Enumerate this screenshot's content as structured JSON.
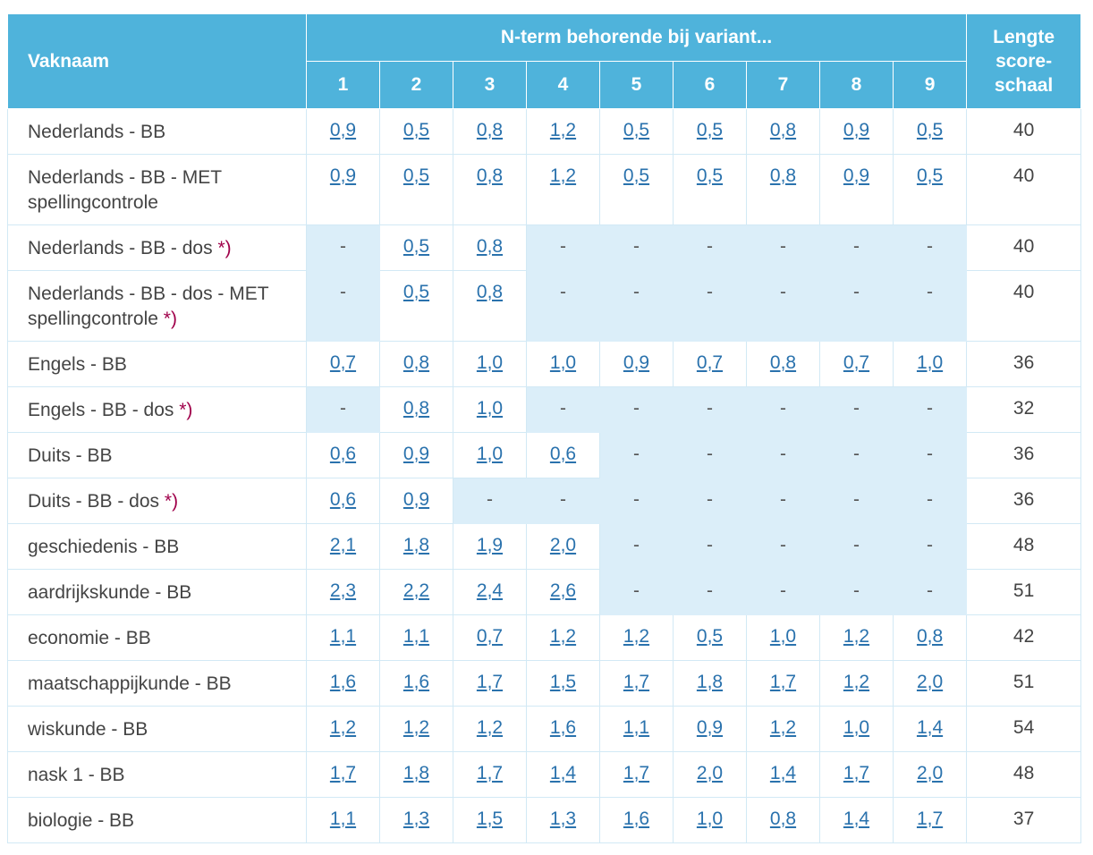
{
  "header": {
    "col_name": "Vaknaam",
    "col_group": "N-term behorende bij variant...",
    "col_length": "Lengte score-schaal",
    "variants": [
      "1",
      "2",
      "3",
      "4",
      "5",
      "6",
      "7",
      "8",
      "9"
    ]
  },
  "rows": [
    {
      "name": "Nederlands - BB",
      "star": "",
      "values": [
        "0,9",
        "0,5",
        "0,8",
        "1,2",
        "0,5",
        "0,5",
        "0,8",
        "0,9",
        "0,5"
      ],
      "length": "40"
    },
    {
      "name": "Nederlands - BB - MET spellingcontrole",
      "star": "",
      "values": [
        "0,9",
        "0,5",
        "0,8",
        "1,2",
        "0,5",
        "0,5",
        "0,8",
        "0,9",
        "0,5"
      ],
      "length": "40"
    },
    {
      "name": "Nederlands - BB - dos ",
      "star": "*)",
      "values": [
        "-",
        "0,5",
        "0,8",
        "-",
        "-",
        "-",
        "-",
        "-",
        "-"
      ],
      "length": "40"
    },
    {
      "name": "Nederlands - BB - dos - MET spellingcontrole ",
      "star": "*)",
      "values": [
        "-",
        "0,5",
        "0,8",
        "-",
        "-",
        "-",
        "-",
        "-",
        "-"
      ],
      "length": "40"
    },
    {
      "name": "Engels - BB",
      "star": "",
      "values": [
        "0,7",
        "0,8",
        "1,0",
        "1,0",
        "0,9",
        "0,7",
        "0,8",
        "0,7",
        "1,0"
      ],
      "length": "36"
    },
    {
      "name": "Engels - BB - dos ",
      "star": "*)",
      "values": [
        "-",
        "0,8",
        "1,0",
        "-",
        "-",
        "-",
        "-",
        "-",
        "-"
      ],
      "length": "32"
    },
    {
      "name": "Duits - BB",
      "star": "",
      "values": [
        "0,6",
        "0,9",
        "1,0",
        "0,6",
        "-",
        "-",
        "-",
        "-",
        "-"
      ],
      "length": "36"
    },
    {
      "name": "Duits - BB - dos ",
      "star": "*)",
      "values": [
        "0,6",
        "0,9",
        "-",
        "-",
        "-",
        "-",
        "-",
        "-",
        "-"
      ],
      "length": "36"
    },
    {
      "name": "geschiedenis - BB",
      "star": "",
      "values": [
        "2,1",
        "1,8",
        "1,9",
        "2,0",
        "-",
        "-",
        "-",
        "-",
        "-"
      ],
      "length": "48"
    },
    {
      "name": "aardrijkskunde - BB",
      "star": "",
      "values": [
        "2,3",
        "2,2",
        "2,4",
        "2,6",
        "-",
        "-",
        "-",
        "-",
        "-"
      ],
      "length": "51"
    },
    {
      "name": "economie - BB",
      "star": "",
      "values": [
        "1,1",
        "1,1",
        "0,7",
        "1,2",
        "1,2",
        "0,5",
        "1,0",
        "1,2",
        "0,8"
      ],
      "length": "42"
    },
    {
      "name": "maatschappijkunde - BB",
      "star": "",
      "values": [
        "1,6",
        "1,6",
        "1,7",
        "1,5",
        "1,7",
        "1,8",
        "1,7",
        "1,2",
        "2,0"
      ],
      "length": "51"
    },
    {
      "name": "wiskunde - BB",
      "star": "",
      "values": [
        "1,2",
        "1,2",
        "1,2",
        "1,6",
        "1,1",
        "0,9",
        "1,2",
        "1,0",
        "1,4"
      ],
      "length": "54"
    },
    {
      "name": "nask 1 - BB",
      "star": "",
      "values": [
        "1,7",
        "1,8",
        "1,7",
        "1,4",
        "1,7",
        "2,0",
        "1,4",
        "1,7",
        "2,0"
      ],
      "length": "48"
    },
    {
      "name": "biologie - BB",
      "star": "",
      "values": [
        "1,1",
        "1,3",
        "1,5",
        "1,3",
        "1,6",
        "1,0",
        "0,8",
        "1,4",
        "1,7"
      ],
      "length": "37"
    }
  ]
}
